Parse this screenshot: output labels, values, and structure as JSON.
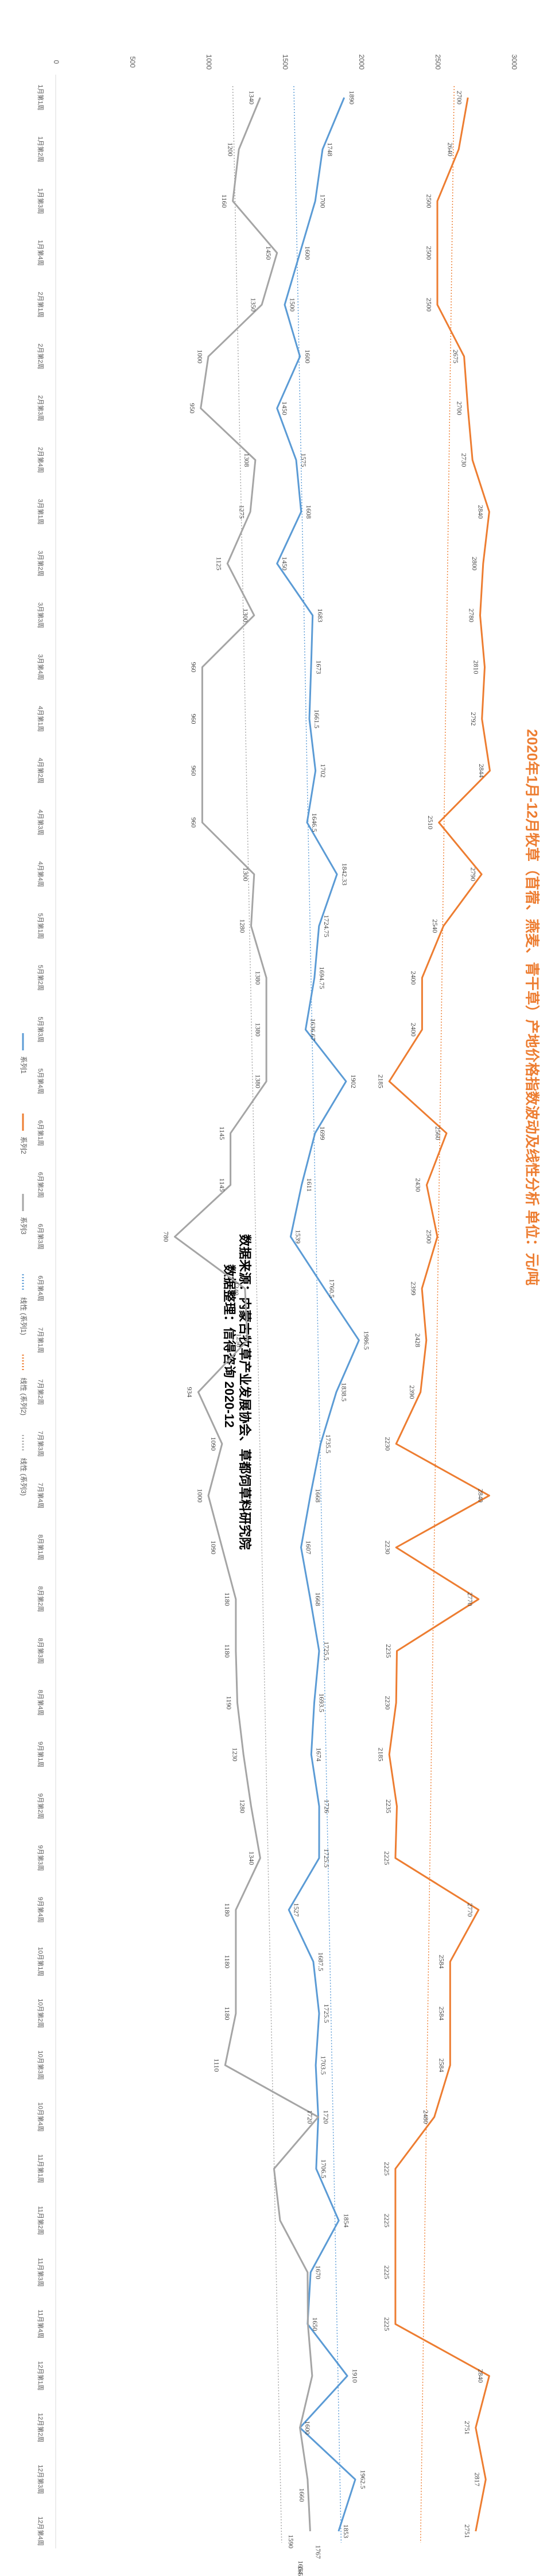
{
  "chart_data": {
    "type": "line",
    "title": "2020年1月-12月牧草（苜蓿、燕麦、青干草）产地价格指数波动及线性分析  单位：元/吨",
    "notes": [
      "数据来源：内蒙古牧草产业发展协会、草都饲草料研究院",
      "数据整理：信得咨询    2020-12"
    ],
    "ylim": [
      0,
      3000
    ],
    "yticks": [
      "0",
      "500",
      "1000",
      "1500",
      "2000",
      "2500",
      "3000"
    ],
    "categories": [
      "1月第1周",
      "1月第2周",
      "1月第3周",
      "1月第4周",
      "2月第1周",
      "2月第2周",
      "2月第3周",
      "2月第4周",
      "3月第1周",
      "3月第2周",
      "3月第3周",
      "3月第4周",
      "4月第1周",
      "4月第2周",
      "4月第3周",
      "4月第4周",
      "5月第1周",
      "5月第2周",
      "5月第3周",
      "5月第4周",
      "6月第1周",
      "6月第2周",
      "6月第3周",
      "6月第4周",
      "7月第1周",
      "7月第2周",
      "7月第3周",
      "7月第4周",
      "8月第1周",
      "8月第2周",
      "8月第3周",
      "8月第4周",
      "9月第1周",
      "9月第2周",
      "9月第3周",
      "9月第4周",
      "10月第1周",
      "10月第2周",
      "10月第3周",
      "10月第4周",
      "11月第1周",
      "11月第2周",
      "11月第3周",
      "11月第4周",
      "12月第1周",
      "12月第2周",
      "12月第3周",
      "12月第4周"
    ],
    "series": [
      {
        "name": "系列1",
        "color": "#5B9BD5",
        "values": [
          1890,
          1748,
          1700,
          1600,
          1500,
          1600,
          1450,
          1575,
          1608,
          1450,
          1683,
          1673,
          1661.5,
          1702,
          1646.5,
          1842.33,
          1724.75,
          1694.75,
          1636.67,
          1902,
          1699,
          1611,
          1539,
          1760.5,
          1986.5,
          1838.5,
          1735.5,
          1668,
          1607,
          1668,
          1725.5,
          1693.5,
          1674,
          1726,
          1725.5,
          1527,
          1687.5,
          1725.5,
          1703.5,
          1720,
          1706.5,
          1854,
          1670,
          1650,
          1910,
          1600,
          1962.5,
          1853
        ],
        "labels": [
          "1890",
          "1748",
          "1700",
          "1600",
          "1500",
          "1600",
          "1450",
          "1575",
          "1608",
          "1450",
          "1683",
          "1673",
          "1661.5",
          "1702",
          "1646.5",
          "1842.33",
          "1724.75",
          "1694.75",
          "1636.67",
          "1902",
          "1699",
          "1611",
          "1539",
          "1760.5",
          "1986.5",
          "1838.5",
          "1735.5",
          "1668",
          "1607",
          "1668",
          "1725.5",
          "1693.5",
          "1674",
          "1726",
          "1725.5",
          "1527",
          "1687.5",
          "1725.5",
          "1703.5",
          "1720",
          "1706.5",
          "1854",
          "1670",
          "1650",
          "1910",
          "1600",
          "1962.5",
          "1853"
        ],
        "extra_points": [
          {
            "index": 46.3,
            "value": 1660,
            "label": "1660"
          },
          {
            "index": 47.4,
            "value": 1767,
            "label": "1767"
          },
          {
            "index": 47.7,
            "value": 1654,
            "label": "1654"
          },
          {
            "index": 47.2,
            "value": 1590,
            "label": "1590"
          },
          {
            "index": 47.8,
            "value": 1652,
            "label": "1652"
          }
        ]
      },
      {
        "name": "系列2",
        "color": "#ED7D31",
        "values": [
          2700,
          2640,
          2500,
          2500,
          2500,
          2675,
          2700,
          2730,
          2840,
          2800,
          2780,
          2810,
          2792,
          2844,
          2510,
          2790,
          2540,
          2400,
          2400,
          2185,
          2560,
          2430,
          2500,
          2399,
          2428,
          2390,
          2230,
          2840,
          2230,
          2770,
          2235,
          2230,
          2185,
          2235,
          2225,
          2770,
          2584,
          2584,
          2584,
          2480,
          2225,
          2225,
          2225,
          2225,
          2840,
          2751,
          2817,
          2751
        ],
        "labels": [
          "2700",
          "2640",
          "2500",
          "2500",
          "2500",
          "2675",
          "2700",
          "2730",
          "2840",
          "2800",
          "2780",
          "2810",
          "2792",
          "2844",
          "2510",
          "2790",
          "2540",
          "2400",
          "2400",
          "2185",
          "2560",
          "2430",
          "2500",
          "2399",
          "2428",
          "2390",
          "2230",
          "2840",
          "2230",
          "2770",
          "2235",
          "2230",
          "2185",
          "2235",
          "2225",
          "2770",
          "2584",
          "2584",
          "2584",
          "2480",
          "2225",
          "2225",
          "2225",
          "2225",
          "2840",
          "2751",
          "2817",
          "2751"
        ]
      },
      {
        "name": "系列3",
        "color": "#A5A5A5",
        "values": [
          1340,
          1200,
          1160,
          1450,
          1350,
          1000,
          950,
          1308,
          1275,
          1125,
          1300,
          960,
          960,
          960,
          960,
          1300,
          1280,
          1380,
          1380,
          1380,
          1145,
          1145,
          780,
          1240,
          1256,
          934,
          1090,
          1000,
          1090,
          1180,
          1180,
          1190,
          1230,
          1280,
          1340,
          1180,
          1180,
          1180,
          1110,
          1720,
          1430,
          1470,
          1650,
          1652,
          1680,
          1600,
          1650,
          1667
        ],
        "labels": [
          "1340",
          "1200",
          "1160",
          "1450",
          "1350",
          "1000",
          "950",
          "1308",
          "1275",
          "1125",
          "1300",
          "960",
          "960",
          "960",
          "960",
          "1300",
          "1280",
          "1380",
          "1380",
          "1380",
          "1145",
          "1145",
          "780",
          "1240",
          "1256",
          "934",
          "1090",
          "1000",
          "1090",
          "1180",
          "1180",
          "1190",
          "1230",
          "1280",
          "1340",
          "1180",
          "1180",
          "1180",
          "1110",
          "1720",
          "",
          "",
          "",
          "",
          "",
          "",
          "",
          ""
        ]
      }
    ],
    "trendlines": [
      {
        "name": "线性 (系列1)",
        "color": "#5B9BD5",
        "start": 1560,
        "end": 1870
      },
      {
        "name": "线性 (系列2)",
        "color": "#ED7D31",
        "start": 2610,
        "end": 2390
      },
      {
        "name": "线性 (系列3)",
        "color": "#A5A5A5",
        "start": 1160,
        "end": 1480
      }
    ],
    "legend": [
      "系列1",
      "系列2",
      "系列3",
      "线性 (系列1)",
      "线性 (系列2)",
      "线性 (系列3)"
    ],
    "legend_position": "bottom",
    "grid": false
  }
}
